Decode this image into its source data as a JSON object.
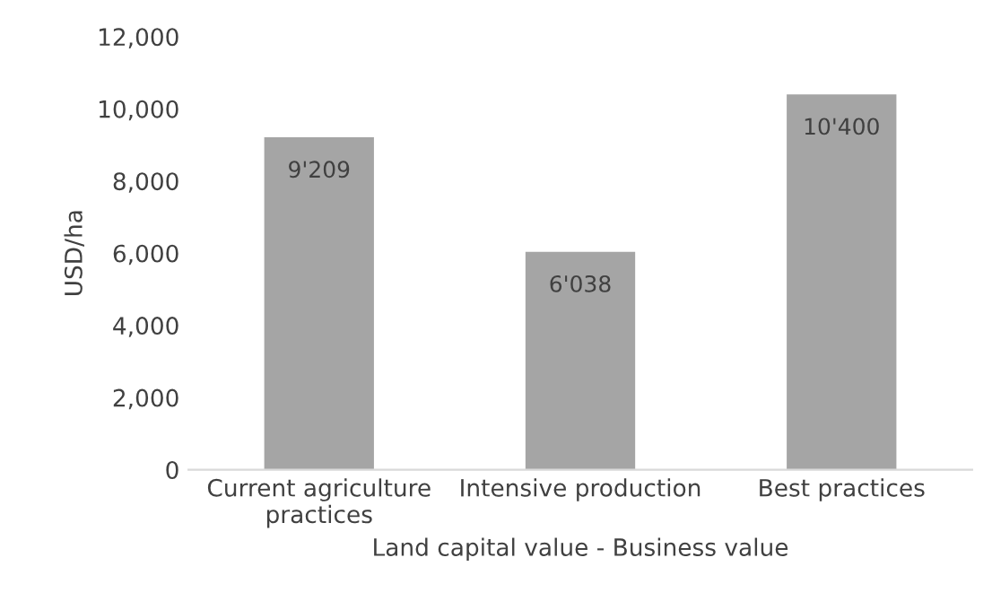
{
  "chart_data": {
    "type": "bar",
    "xlabel": "Land capital value - Business value",
    "ylabel": "USD/ha",
    "categories": [
      "Current agriculture\npractices",
      "Intensive production",
      "Best practices"
    ],
    "values": [
      9209,
      6038,
      10400
    ],
    "color": "#a5a5a5",
    "value_labels": [
      "9'209",
      "6'038",
      "10'400"
    ],
    "ylim": [
      0,
      12000
    ],
    "yticks": [
      0,
      {
        "value": 2000,
        "label": "2,000"
      },
      {
        "value": 4000,
        "label": "4,000"
      },
      {
        "value": 6000,
        "label": "6,000"
      },
      {
        "value": 8000,
        "label": "8,000"
      },
      {
        "value": 10000,
        "label": "10,000"
      },
      {
        "value": 12000,
        "label": "12,000"
      }
    ],
    "grid": false
  }
}
